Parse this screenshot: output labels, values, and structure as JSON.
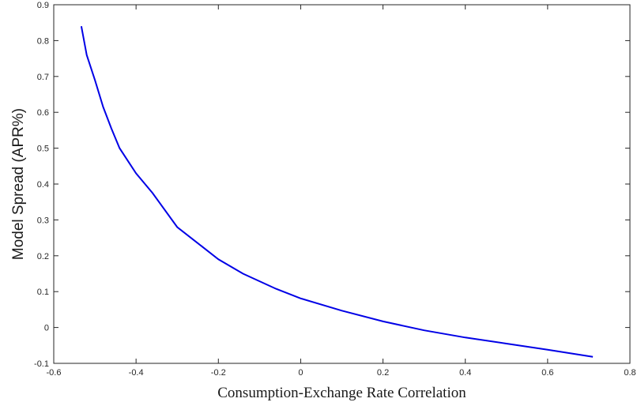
{
  "chart_data": {
    "type": "line",
    "title": "",
    "xlabel": "Consumption-Exchange Rate Correlation",
    "ylabel": "Model Spread (APR%)",
    "xlim": [
      -0.6,
      0.8
    ],
    "ylim": [
      -0.1,
      0.9
    ],
    "xticks": [
      "-0.6",
      "-0.4",
      "-0.2",
      "0",
      "0.2",
      "0.4",
      "0.6",
      "0.8"
    ],
    "yticks": [
      "-0.1",
      "0",
      "0.1",
      "0.2",
      "0.3",
      "0.4",
      "0.5",
      "0.6",
      "0.7",
      "0.8",
      "0.9"
    ],
    "grid": false,
    "series": [
      {
        "color": "#0000e6",
        "x": [
          -0.533,
          -0.52,
          -0.5,
          -0.48,
          -0.46,
          -0.44,
          -0.4,
          -0.36,
          -0.3,
          -0.25,
          -0.2,
          -0.14,
          -0.06,
          0.0,
          0.1,
          0.2,
          0.3,
          0.4,
          0.5,
          0.6,
          0.71
        ],
        "y": [
          0.84,
          0.76,
          0.69,
          0.615,
          0.555,
          0.5,
          0.43,
          0.375,
          0.28,
          0.235,
          0.19,
          0.15,
          0.108,
          0.081,
          0.047,
          0.017,
          -0.008,
          -0.028,
          -0.045,
          -0.062,
          -0.082
        ]
      }
    ]
  }
}
